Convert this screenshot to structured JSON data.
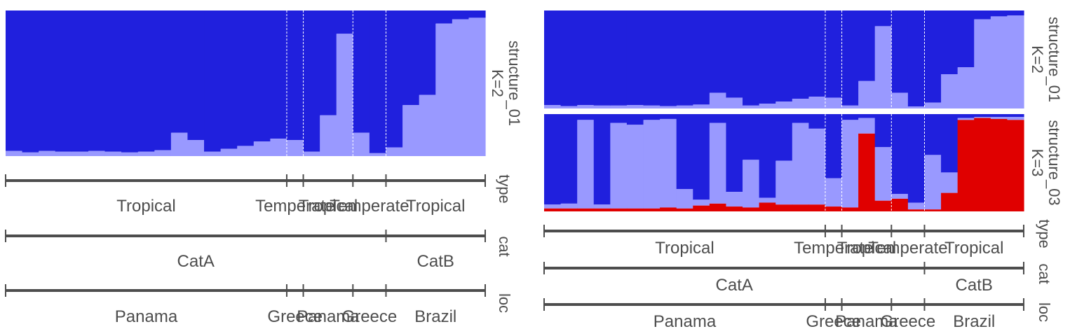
{
  "colors": {
    "k1": "#2020dd",
    "k2": "#9999ff",
    "k3": "#e00000",
    "track": "#4d4d4d",
    "sep": "#ffffff"
  },
  "chart_data": [
    {
      "type": "bar",
      "subtype": "stacked-admixture",
      "n_individuals": 29,
      "panels": [
        {
          "strip": [
            "structure_01",
            "K=2"
          ],
          "series": [
            {
              "values": [
                0.965,
                0.975,
                0.965,
                0.97,
                0.97,
                0.965,
                0.97,
                0.975,
                0.97,
                0.96,
                0.84,
                0.89,
                0.97,
                0.95,
                0.93,
                0.9,
                0.88,
                0.89,
                0.97,
                0.72,
                0.16,
                0.84,
                0.98,
                0.94,
                0.65,
                0.58,
                0.09,
                0.06,
                0.05
              ]
            },
            {
              "values": [
                0.035,
                0.025,
                0.035,
                0.03,
                0.03,
                0.035,
                0.03,
                0.025,
                0.03,
                0.04,
                0.16,
                0.11,
                0.03,
                0.05,
                0.07,
                0.1,
                0.12,
                0.11,
                0.03,
                0.28,
                0.84,
                0.16,
                0.02,
                0.06,
                0.35,
                0.42,
                0.91,
                0.94,
                0.95
              ]
            }
          ]
        }
      ],
      "groups": [
        {
          "name": "type",
          "segments": [
            {
              "label": "Tropical",
              "start": 0,
              "end": 17
            },
            {
              "label": "Temperate",
              "start": 17,
              "end": 18
            },
            {
              "label": "Tropical",
              "start": 18,
              "end": 21
            },
            {
              "label": "Temperate",
              "start": 21,
              "end": 23
            },
            {
              "label": "Tropical",
              "start": 23,
              "end": 29
            }
          ]
        },
        {
          "name": "cat",
          "segments": [
            {
              "label": "CatA",
              "start": 0,
              "end": 23
            },
            {
              "label": "CatB",
              "start": 23,
              "end": 29
            }
          ]
        },
        {
          "name": "loc",
          "segments": [
            {
              "label": "Panama",
              "start": 0,
              "end": 17
            },
            {
              "label": "Greece",
              "start": 17,
              "end": 18
            },
            {
              "label": "Panama",
              "start": 18,
              "end": 21
            },
            {
              "label": "Greece",
              "start": 21,
              "end": 23
            },
            {
              "label": "Brazil",
              "start": 23,
              "end": 29
            }
          ]
        }
      ]
    },
    {
      "type": "bar",
      "subtype": "stacked-admixture",
      "n_individuals": 29,
      "panels": [
        {
          "strip": [
            "structure_01",
            "K=2"
          ],
          "series": [
            {
              "values": [
                0.965,
                0.975,
                0.965,
                0.97,
                0.97,
                0.965,
                0.97,
                0.975,
                0.97,
                0.96,
                0.84,
                0.89,
                0.97,
                0.95,
                0.93,
                0.9,
                0.88,
                0.89,
                0.97,
                0.72,
                0.16,
                0.84,
                0.98,
                0.94,
                0.65,
                0.58,
                0.09,
                0.06,
                0.05
              ]
            },
            {
              "values": [
                0.035,
                0.025,
                0.035,
                0.03,
                0.03,
                0.035,
                0.03,
                0.025,
                0.03,
                0.04,
                0.16,
                0.11,
                0.03,
                0.05,
                0.07,
                0.1,
                0.12,
                0.11,
                0.03,
                0.28,
                0.84,
                0.16,
                0.02,
                0.06,
                0.35,
                0.42,
                0.91,
                0.94,
                0.95
              ]
            }
          ]
        },
        {
          "strip": [
            "structure_03",
            "K=3"
          ],
          "series": [
            {
              "values": [
                0.93,
                0.92,
                0.06,
                0.93,
                0.09,
                0.11,
                0.06,
                0.05,
                0.77,
                0.88,
                0.09,
                0.8,
                0.47,
                0.86,
                0.48,
                0.09,
                0.15,
                0.66,
                0.06,
                0.04,
                0.34,
                0.82,
                0.91,
                0.42,
                0.6,
                0.04,
                0.03,
                0.03,
                0.03
              ]
            },
            {
              "values": [
                0.04,
                0.05,
                0.91,
                0.04,
                0.88,
                0.86,
                0.91,
                0.91,
                0.2,
                0.06,
                0.83,
                0.15,
                0.49,
                0.05,
                0.45,
                0.84,
                0.78,
                0.29,
                0.9,
                0.16,
                0.55,
                0.05,
                0.07,
                0.56,
                0.21,
                0.02,
                0.01,
                0.02,
                0.03
              ]
            },
            {
              "values": [
                0.03,
                0.03,
                0.03,
                0.03,
                0.03,
                0.03,
                0.03,
                0.04,
                0.03,
                0.06,
                0.08,
                0.05,
                0.04,
                0.09,
                0.07,
                0.07,
                0.07,
                0.05,
                0.04,
                0.8,
                0.11,
                0.13,
                0.02,
                0.02,
                0.19,
                0.94,
                0.96,
                0.95,
                0.94
              ]
            }
          ]
        }
      ],
      "groups": [
        {
          "name": "type",
          "segments": [
            {
              "label": "Tropical",
              "start": 0,
              "end": 17
            },
            {
              "label": "Temperate",
              "start": 17,
              "end": 18
            },
            {
              "label": "Tropical",
              "start": 18,
              "end": 21
            },
            {
              "label": "Temperate",
              "start": 21,
              "end": 23
            },
            {
              "label": "Tropical",
              "start": 23,
              "end": 29
            }
          ]
        },
        {
          "name": "cat",
          "segments": [
            {
              "label": "CatA",
              "start": 0,
              "end": 23
            },
            {
              "label": "CatB",
              "start": 23,
              "end": 29
            }
          ]
        },
        {
          "name": "loc",
          "segments": [
            {
              "label": "Panama",
              "start": 0,
              "end": 17
            },
            {
              "label": "Greece",
              "start": 17,
              "end": 18
            },
            {
              "label": "Panama",
              "start": 18,
              "end": 21
            },
            {
              "label": "Greece",
              "start": 21,
              "end": 23
            },
            {
              "label": "Brazil",
              "start": 23,
              "end": 29
            }
          ]
        }
      ]
    }
  ]
}
